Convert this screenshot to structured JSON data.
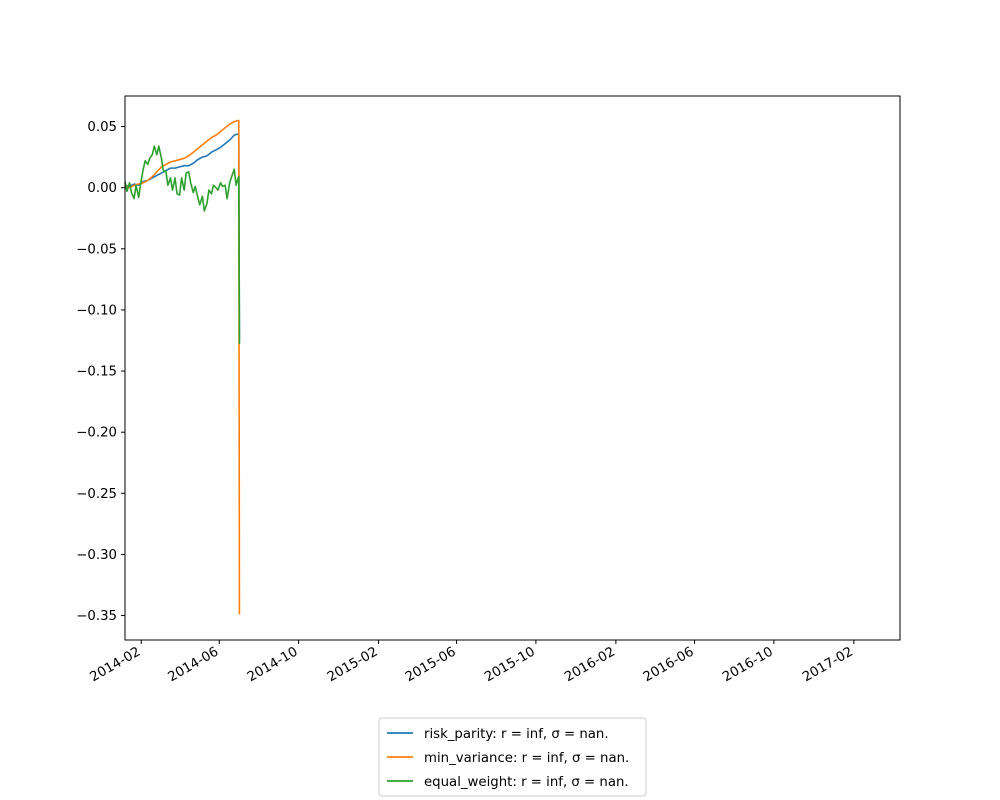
{
  "chart_data": {
    "type": "line",
    "title": "",
    "xlabel": "",
    "ylabel": "",
    "xlim": [
      "2014-01-07",
      "2017-04-13"
    ],
    "ylim": [
      -0.37,
      0.075
    ],
    "x_ticks": [
      "2014-02",
      "2014-06",
      "2014-10",
      "2015-02",
      "2015-06",
      "2015-10",
      "2016-02",
      "2016-06",
      "2016-10",
      "2017-02"
    ],
    "y_ticks": [
      "0.05",
      "0.00",
      "−0.05",
      "−0.10",
      "−0.15",
      "−0.20",
      "−0.25",
      "−0.30",
      "−0.35"
    ],
    "grid": false,
    "legend_position": "bottom-center, below axes",
    "series": [
      {
        "name": "risk_parity: r = inf, σ = nan.",
        "color": "#1f77b4",
        "points": [
          [
            "2014-01-07",
            0.002
          ],
          [
            "2014-01-14",
            0.001
          ],
          [
            "2014-01-21",
            0.003
          ],
          [
            "2014-01-28",
            0.002
          ],
          [
            "2014-02-04",
            0.005
          ],
          [
            "2014-02-11",
            0.006
          ],
          [
            "2014-02-18",
            0.008
          ],
          [
            "2014-02-25",
            0.01
          ],
          [
            "2014-03-04",
            0.012
          ],
          [
            "2014-03-11",
            0.014
          ],
          [
            "2014-03-18",
            0.016
          ],
          [
            "2014-03-25",
            0.016
          ],
          [
            "2014-04-01",
            0.017
          ],
          [
            "2014-04-08",
            0.018
          ],
          [
            "2014-04-15",
            0.018
          ],
          [
            "2014-04-22",
            0.02
          ],
          [
            "2014-04-29",
            0.023
          ],
          [
            "2014-05-06",
            0.025
          ],
          [
            "2014-05-13",
            0.026
          ],
          [
            "2014-05-20",
            0.029
          ],
          [
            "2014-05-27",
            0.031
          ],
          [
            "2014-06-03",
            0.033
          ],
          [
            "2014-06-10",
            0.036
          ],
          [
            "2014-06-17",
            0.039
          ],
          [
            "2014-06-24",
            0.043
          ],
          [
            "2014-06-30",
            0.044
          ],
          [
            "2014-07-01",
            0.044
          ],
          [
            "2014-07-02",
            -0.125
          ]
        ]
      },
      {
        "name": "min_variance: r = inf, σ = nan.",
        "color": "#ff7f0e",
        "points": [
          [
            "2014-01-07",
            0.002
          ],
          [
            "2014-01-14",
            0.0
          ],
          [
            "2014-01-21",
            0.002
          ],
          [
            "2014-01-28",
            0.003
          ],
          [
            "2014-02-04",
            0.004
          ],
          [
            "2014-02-11",
            0.006
          ],
          [
            "2014-02-18",
            0.009
          ],
          [
            "2014-02-25",
            0.013
          ],
          [
            "2014-03-04",
            0.017
          ],
          [
            "2014-03-11",
            0.019
          ],
          [
            "2014-03-18",
            0.021
          ],
          [
            "2014-03-25",
            0.022
          ],
          [
            "2014-04-01",
            0.023
          ],
          [
            "2014-04-08",
            0.024
          ],
          [
            "2014-04-15",
            0.026
          ],
          [
            "2014-04-22",
            0.029
          ],
          [
            "2014-04-29",
            0.032
          ],
          [
            "2014-05-06",
            0.035
          ],
          [
            "2014-05-13",
            0.038
          ],
          [
            "2014-05-20",
            0.041
          ],
          [
            "2014-05-27",
            0.043
          ],
          [
            "2014-06-03",
            0.046
          ],
          [
            "2014-06-10",
            0.049
          ],
          [
            "2014-06-17",
            0.052
          ],
          [
            "2014-06-24",
            0.054
          ],
          [
            "2014-06-30",
            0.055
          ],
          [
            "2014-07-01",
            0.055
          ],
          [
            "2014-07-02",
            -0.349
          ]
        ]
      },
      {
        "name": "equal_weight: r = inf, σ = nan.",
        "color": "#2ca02c",
        "points": [
          [
            "2014-01-07",
            0.005
          ],
          [
            "2014-01-10",
            -0.003
          ],
          [
            "2014-01-14",
            0.004
          ],
          [
            "2014-01-17",
            -0.004
          ],
          [
            "2014-01-21",
            -0.009
          ],
          [
            "2014-01-24",
            0.002
          ],
          [
            "2014-01-28",
            -0.008
          ],
          [
            "2014-01-31",
            0.003
          ],
          [
            "2014-02-04",
            0.015
          ],
          [
            "2014-02-07",
            0.022
          ],
          [
            "2014-02-11",
            0.019
          ],
          [
            "2014-02-14",
            0.024
          ],
          [
            "2014-02-18",
            0.027
          ],
          [
            "2014-02-21",
            0.034
          ],
          [
            "2014-02-25",
            0.027
          ],
          [
            "2014-02-28",
            0.034
          ],
          [
            "2014-03-04",
            0.024
          ],
          [
            "2014-03-07",
            0.014
          ],
          [
            "2014-03-11",
            0.013
          ],
          [
            "2014-03-14",
            0.002
          ],
          [
            "2014-03-18",
            0.008
          ],
          [
            "2014-03-21",
            -0.002
          ],
          [
            "2014-03-25",
            0.008
          ],
          [
            "2014-03-28",
            -0.005
          ],
          [
            "2014-04-01",
            -0.006
          ],
          [
            "2014-04-04",
            0.008
          ],
          [
            "2014-04-08",
            -0.002
          ],
          [
            "2014-04-11",
            0.012
          ],
          [
            "2014-04-15",
            0.013
          ],
          [
            "2014-04-18",
            0.004
          ],
          [
            "2014-04-22",
            -0.004
          ],
          [
            "2014-04-25",
            0.001
          ],
          [
            "2014-04-29",
            -0.008
          ],
          [
            "2014-05-02",
            -0.014
          ],
          [
            "2014-05-06",
            -0.007
          ],
          [
            "2014-05-09",
            -0.019
          ],
          [
            "2014-05-13",
            -0.013
          ],
          [
            "2014-05-16",
            -0.002
          ],
          [
            "2014-05-20",
            -0.005
          ],
          [
            "2014-05-23",
            0.002
          ],
          [
            "2014-05-27",
            0.0
          ],
          [
            "2014-05-30",
            -0.002
          ],
          [
            "2014-06-03",
            0.004
          ],
          [
            "2014-06-06",
            0.001
          ],
          [
            "2014-06-10",
            0.002
          ],
          [
            "2014-06-13",
            -0.009
          ],
          [
            "2014-06-17",
            0.004
          ],
          [
            "2014-06-20",
            0.009
          ],
          [
            "2014-06-24",
            0.015
          ],
          [
            "2014-06-27",
            0.002
          ],
          [
            "2014-06-30",
            0.008
          ],
          [
            "2014-07-01",
            0.009
          ],
          [
            "2014-07-02",
            -0.128
          ]
        ]
      }
    ]
  }
}
